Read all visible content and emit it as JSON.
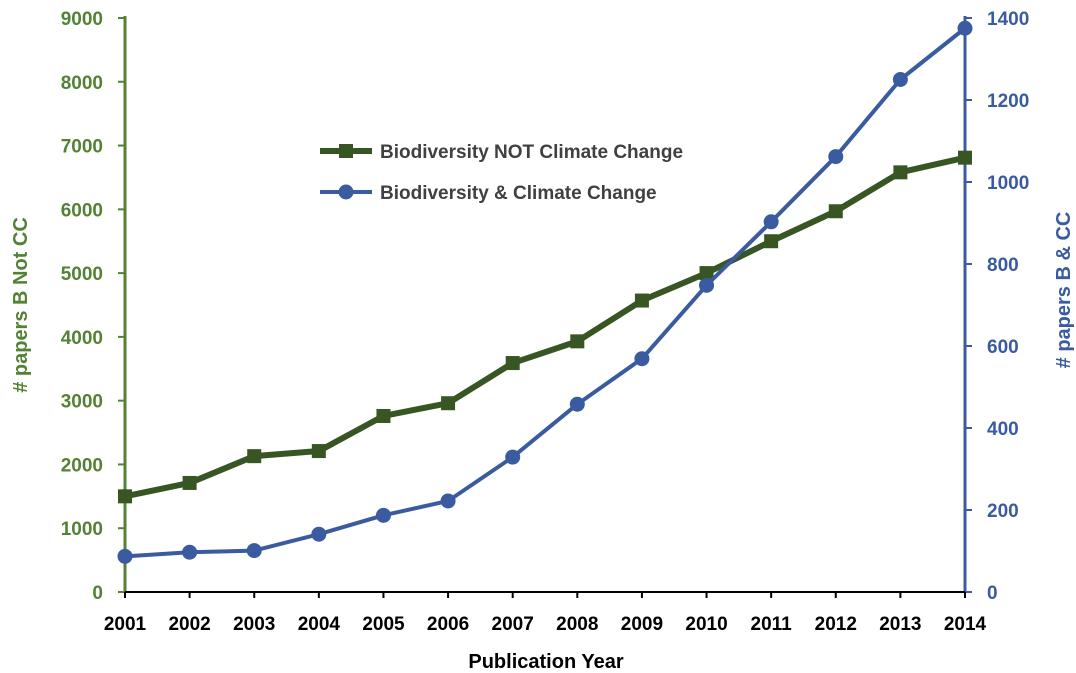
{
  "chart_data": {
    "type": "line",
    "title": "",
    "xlabel": "Publication Year",
    "ylabel_left": "# papers B Not CC",
    "ylabel_right": "# papers B & CC",
    "categories": [
      "2001",
      "2002",
      "2003",
      "2004",
      "2005",
      "2006",
      "2007",
      "2008",
      "2009",
      "2010",
      "2011",
      "2012",
      "2013",
      "2014"
    ],
    "ylim_left": [
      0,
      9000
    ],
    "yticks_left": [
      0,
      1000,
      2000,
      3000,
      4000,
      5000,
      6000,
      7000,
      8000,
      9000
    ],
    "ylim_right": [
      0,
      1400
    ],
    "yticks_right": [
      0,
      200,
      400,
      600,
      800,
      1000,
      1200,
      1400
    ],
    "grid": false,
    "legend_position": "upper-center",
    "series": [
      {
        "name": "Biodiversity NOT Climate Change",
        "axis": "left",
        "color": "#375623",
        "marker": "square",
        "values": [
          1500,
          1710,
          2130,
          2210,
          2760,
          2960,
          3590,
          3930,
          4570,
          5000,
          5500,
          5970,
          6580,
          6810
        ]
      },
      {
        "name": "Biodiversity & Climate Change",
        "axis": "right",
        "color": "#3A5BA0",
        "marker": "circle",
        "values": [
          87,
          97,
          101,
          141,
          187,
          222,
          329,
          458,
          569,
          748,
          903,
          1062,
          1250,
          1375
        ]
      }
    ],
    "axis_colors": {
      "left": "#548235",
      "right": "#3A5BA0",
      "x": "#000000"
    }
  }
}
